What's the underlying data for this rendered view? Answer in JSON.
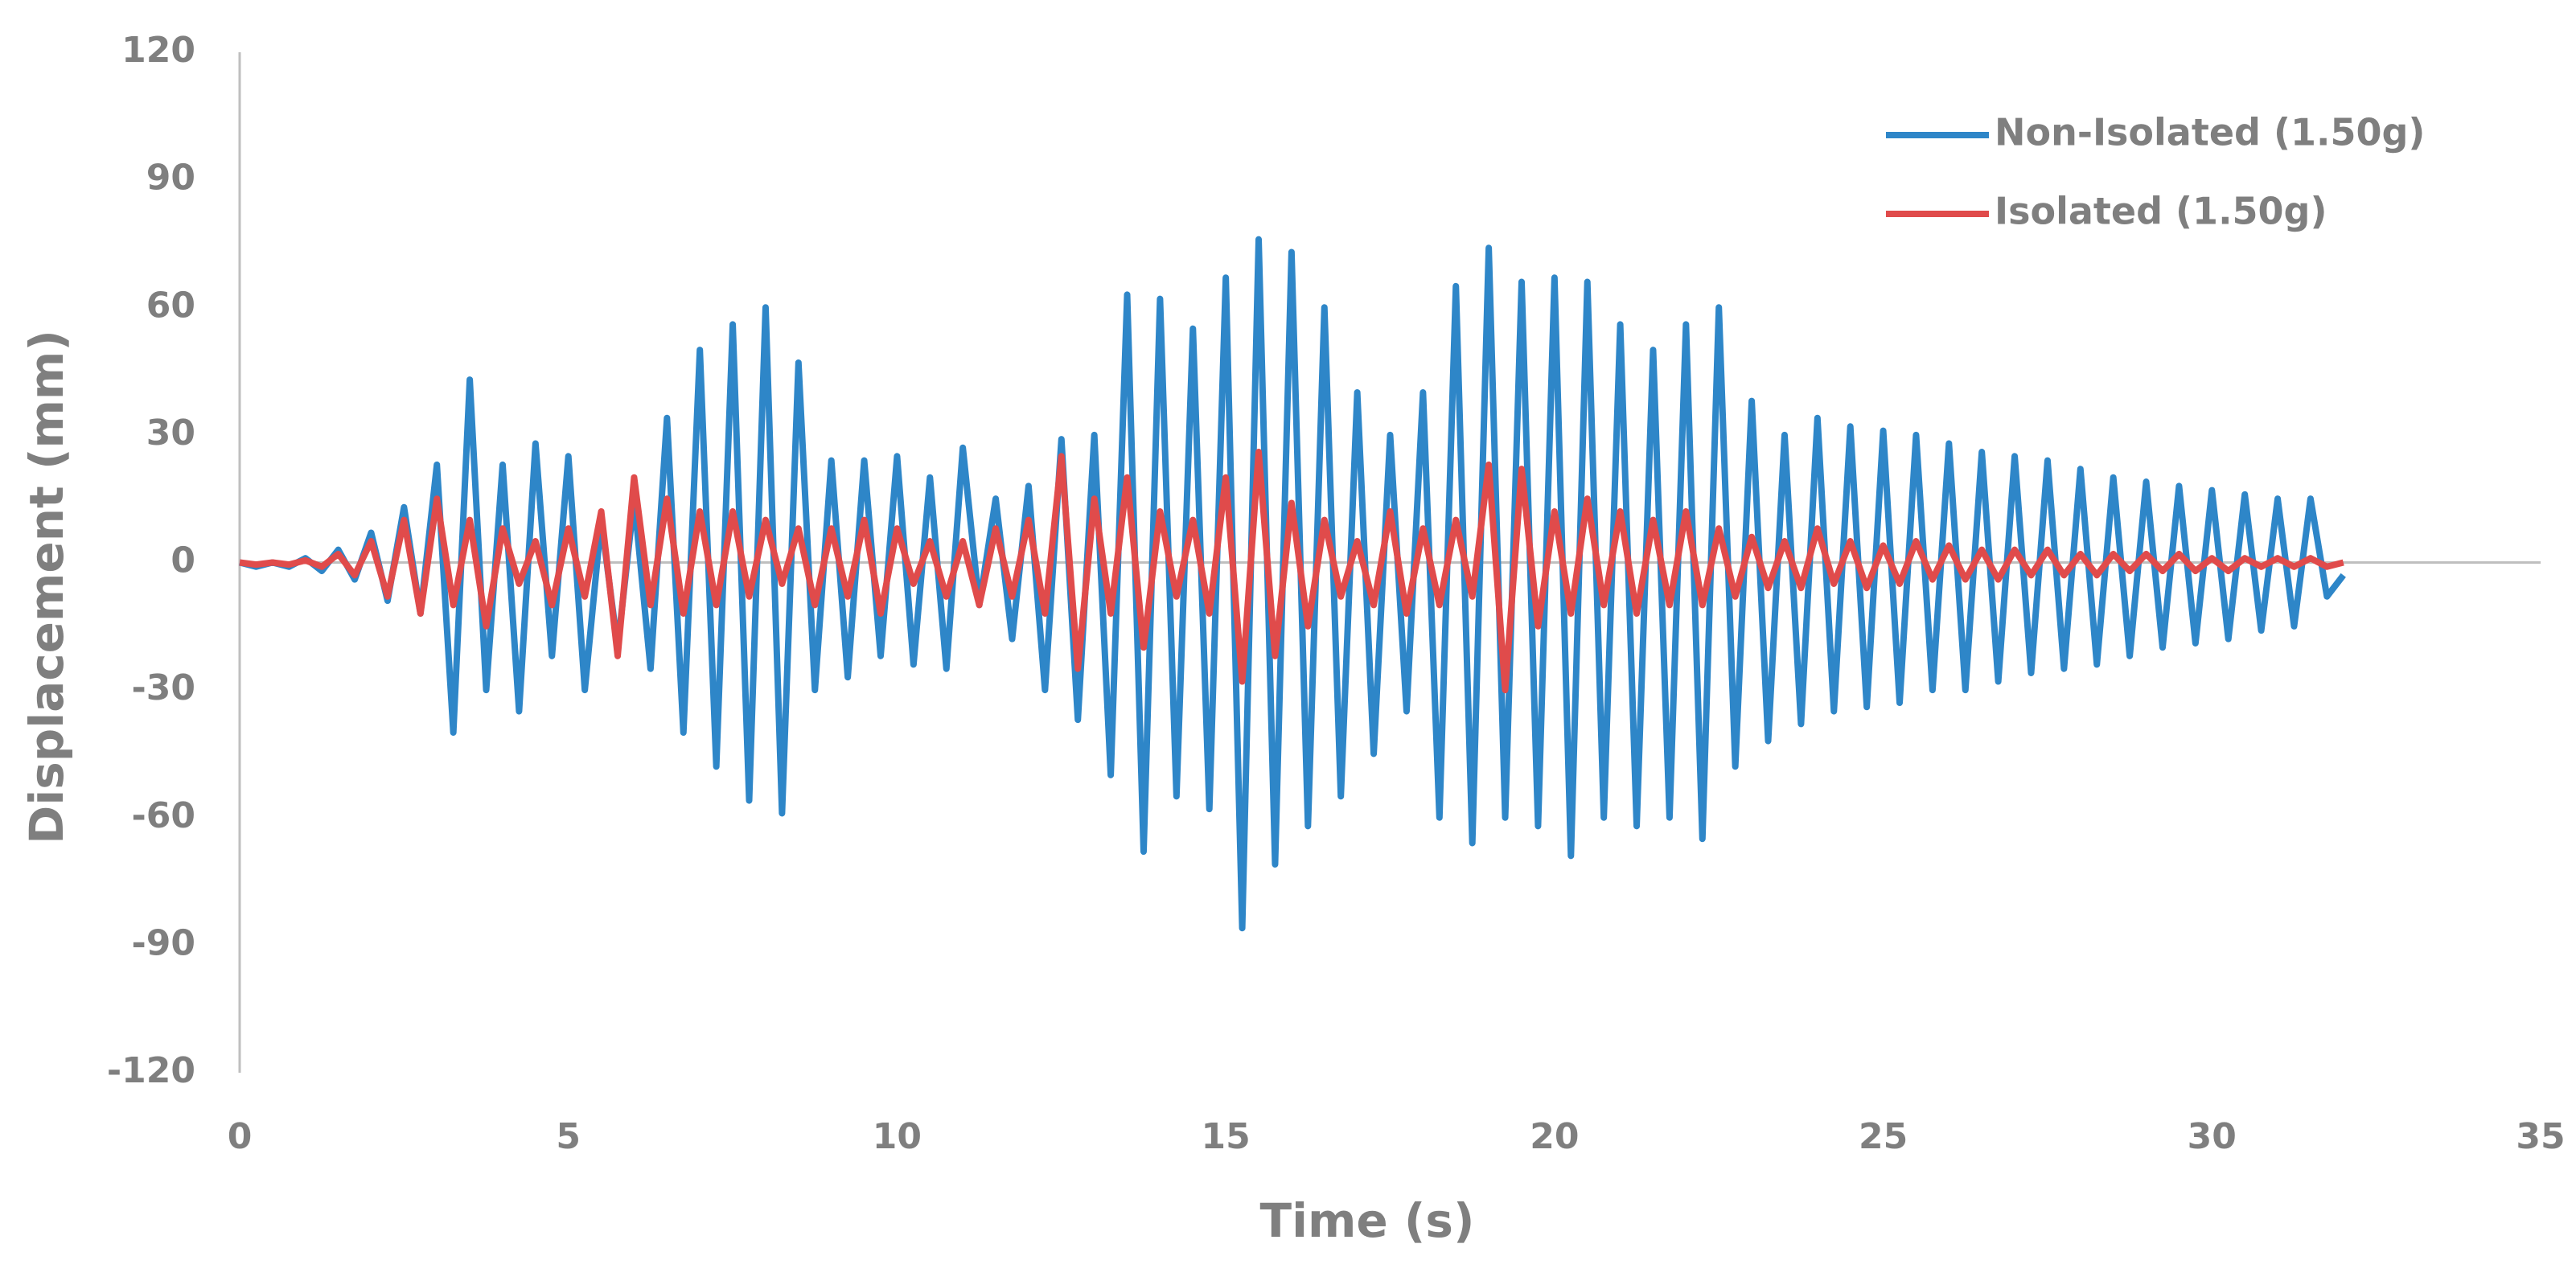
{
  "chart_data": {
    "type": "line",
    "xlabel": "Time (s)",
    "ylabel": "Displacement (mm)",
    "x": [
      0,
      0.25,
      0.5,
      0.75,
      1,
      1.25,
      1.5,
      1.75,
      2,
      2.25,
      2.5,
      2.75,
      3,
      3.25,
      3.5,
      3.75,
      4,
      4.25,
      4.5,
      4.75,
      5,
      5.25,
      5.5,
      5.75,
      6,
      6.25,
      6.5,
      6.75,
      7,
      7.25,
      7.5,
      7.75,
      8,
      8.25,
      8.5,
      8.75,
      9,
      9.25,
      9.5,
      9.75,
      10,
      10.25,
      10.5,
      10.75,
      11,
      11.25,
      11.5,
      11.75,
      12,
      12.25,
      12.5,
      12.75,
      13,
      13.25,
      13.5,
      13.75,
      14,
      14.25,
      14.5,
      14.75,
      15,
      15.25,
      15.5,
      15.75,
      16,
      16.25,
      16.5,
      16.75,
      17,
      17.25,
      17.5,
      17.75,
      18,
      18.25,
      18.5,
      18.75,
      19,
      19.25,
      19.5,
      19.75,
      20,
      20.25,
      20.5,
      20.75,
      21,
      21.25,
      21.5,
      21.75,
      22,
      22.25,
      22.5,
      22.75,
      23,
      23.25,
      23.5,
      23.75,
      24,
      24.25,
      24.5,
      24.75,
      25,
      25.25,
      25.5,
      25.75,
      26,
      26.25,
      26.5,
      26.75,
      27,
      27.25,
      27.5,
      27.75,
      28,
      28.25,
      28.5,
      28.75,
      29,
      29.25,
      29.5,
      29.75,
      30,
      30.25,
      30.5,
      30.75,
      31,
      31.25,
      31.5,
      31.75,
      32
    ],
    "series": [
      {
        "name": "Non-Isolated (1.50g)",
        "color": "#2e86c8",
        "values": [
          0,
          -1,
          0,
          -1,
          1,
          -2,
          3,
          -4,
          7,
          -9,
          13,
          -12,
          23,
          -40,
          43,
          -30,
          23,
          -35,
          28,
          -22,
          25,
          -30,
          10,
          -20,
          15,
          -25,
          34,
          -40,
          50,
          -48,
          56,
          -56,
          60,
          -59,
          47,
          -30,
          24,
          -27,
          24,
          -22,
          25,
          -24,
          20,
          -25,
          27,
          -10,
          15,
          -18,
          18,
          -30,
          29,
          -37,
          30,
          -50,
          63,
          -68,
          62,
          -55,
          55,
          -58,
          67,
          -86,
          76,
          -71,
          73,
          -62,
          60,
          -55,
          40,
          -45,
          30,
          -35,
          40,
          -60,
          65,
          -66,
          74,
          -60,
          66,
          -62,
          67,
          -69,
          66,
          -60,
          56,
          -62,
          50,
          -60,
          56,
          -65,
          60,
          -48,
          38,
          -42,
          30,
          -38,
          34,
          -35,
          32,
          -34,
          31,
          -33,
          30,
          -30,
          28,
          -30,
          26,
          -28,
          25,
          -26,
          24,
          -25,
          22,
          -24,
          20,
          -22,
          19,
          -20,
          18,
          -19,
          17,
          -18,
          16,
          -16,
          15,
          -15,
          15,
          -8,
          -3
        ]
      },
      {
        "name": "Isolated (1.50g)",
        "color": "#e04b4b",
        "values": [
          0,
          -0.5,
          0,
          -0.5,
          0.5,
          -1,
          2,
          -3,
          5,
          -8,
          10,
          -12,
          15,
          -10,
          10,
          -15,
          8,
          -5,
          5,
          -10,
          8,
          -8,
          12,
          -22,
          20,
          -10,
          15,
          -12,
          12,
          -10,
          12,
          -8,
          10,
          -5,
          8,
          -10,
          8,
          -8,
          10,
          -12,
          8,
          -5,
          5,
          -8,
          5,
          -10,
          8,
          -8,
          10,
          -12,
          25,
          -25,
          15,
          -12,
          20,
          -20,
          12,
          -8,
          10,
          -12,
          20,
          -28,
          26,
          -22,
          14,
          -15,
          10,
          -8,
          5,
          -10,
          12,
          -12,
          8,
          -10,
          10,
          -8,
          23,
          -30,
          22,
          -15,
          12,
          -12,
          15,
          -10,
          12,
          -12,
          10,
          -10,
          12,
          -10,
          8,
          -8,
          6,
          -6,
          5,
          -6,
          8,
          -5,
          5,
          -6,
          4,
          -5,
          5,
          -4,
          4,
          -4,
          3,
          -4,
          3,
          -3,
          3,
          -3,
          2,
          -3,
          2,
          -2,
          2,
          -2,
          2,
          -2,
          1,
          -2,
          1,
          -1,
          1,
          -1,
          1,
          -1,
          0
        ]
      }
    ],
    "xlim": [
      0,
      35
    ],
    "xticks": [
      0,
      5,
      10,
      15,
      20,
      25,
      30,
      35
    ],
    "ylim": [
      -120,
      120
    ],
    "yticks": [
      -120,
      -90,
      -60,
      -30,
      0,
      30,
      60,
      90,
      120
    ],
    "grid": false,
    "legend": "top-right"
  }
}
